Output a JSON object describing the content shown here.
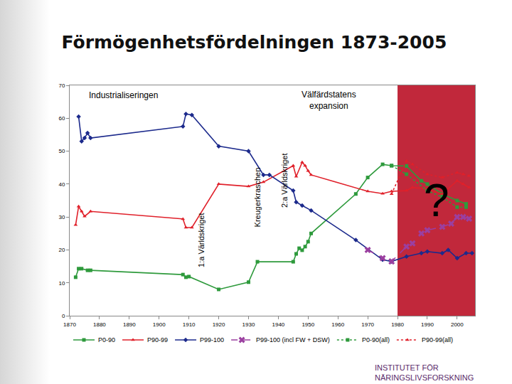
{
  "chart_data": {
    "type": "line",
    "title": "Förmögenhetsfördelningen 1873-2005",
    "xlim": [
      1870,
      2006
    ],
    "xticks": [
      1870,
      1880,
      1890,
      1900,
      1910,
      1920,
      1930,
      1940,
      1950,
      1960,
      1970,
      1980,
      1990,
      2000
    ],
    "ylim": [
      0,
      70
    ],
    "yticks": [
      0,
      10,
      20,
      30,
      40,
      50,
      60,
      70
    ],
    "grid": false,
    "legend": "bottom",
    "annotations": [
      {
        "text": "Industrialiseringen",
        "x": 1888,
        "y": 67
      },
      {
        "text": "Välfärdstatens\nexpansion",
        "x": 1957,
        "y": 65.5
      },
      {
        "text": "?",
        "x": 1993,
        "y": 35
      }
    ],
    "vertical_labels": [
      {
        "text": "1:a Världskriget",
        "x": 1914,
        "y": 23
      },
      {
        "text": "Kreugerkraschen",
        "x": 1933,
        "y": 36
      },
      {
        "text": "2:a Världskriget",
        "x": 1942,
        "y": 41
      }
    ],
    "shaded_range": [
      1980,
      2006
    ],
    "logo": [
      "INSTITUTET FÖR",
      "NÄRINGSLIVSFORSKNING"
    ],
    "series": [
      {
        "name": "P0-90",
        "color": "#2e9a3c",
        "marker": "square",
        "line_style": "solid",
        "x": [
          1872,
          1873,
          1874,
          1876,
          1877,
          1908,
          1909,
          1910,
          1920,
          1930,
          1933,
          1945,
          1946,
          1947,
          1948,
          1949,
          1950,
          1951,
          1966,
          1970,
          1975,
          1978,
          1983,
          1988,
          1990,
          1995,
          2000,
          2003
        ],
        "values": [
          11.7,
          14.3,
          14.3,
          13.8,
          13.8,
          12.5,
          11.7,
          11.9,
          8,
          10.2,
          16.4,
          16.4,
          18.8,
          20.5,
          19.9,
          21,
          22.5,
          25,
          37,
          42,
          46,
          45.6,
          45.5,
          41,
          40,
          37,
          35,
          34
        ]
      },
      {
        "name": "P90-99",
        "color": "#e0202a",
        "marker": "triangle-up",
        "line_style": "solid",
        "x": [
          1872,
          1873,
          1874,
          1875,
          1877,
          1908,
          1909,
          1911,
          1920,
          1930,
          1935,
          1945,
          1946,
          1948,
          1949,
          1950,
          1951,
          1970,
          1975,
          1978,
          1983,
          1985,
          1990,
          1995,
          2000,
          2002,
          2004
        ],
        "values": [
          27.6,
          33.2,
          31.7,
          30.2,
          31.7,
          29.4,
          26.8,
          26.8,
          40,
          39.3,
          40.6,
          45.6,
          42.3,
          46.6,
          45.6,
          44,
          42.8,
          37.8,
          37.1,
          37.8,
          38,
          39,
          38.5,
          37,
          41,
          40,
          39
        ]
      },
      {
        "name": "P99-100",
        "color": "#1c2a8c",
        "marker": "diamond",
        "line_style": "solid",
        "x": [
          1873,
          1874,
          1875,
          1876,
          1877,
          1908,
          1909,
          1911,
          1920,
          1930,
          1935,
          1937,
          1945,
          1946,
          1948,
          1951,
          1966,
          1975,
          1978,
          1983,
          1988,
          1990,
          1995,
          1997,
          2000,
          2003,
          2005
        ],
        "values": [
          60.5,
          53,
          54,
          55.5,
          54,
          57.5,
          61.3,
          61,
          51.5,
          50,
          42.8,
          42.8,
          38,
          34.5,
          33.5,
          32,
          23,
          17,
          16.5,
          18,
          19,
          19.5,
          19,
          20,
          17.5,
          19,
          19
        ]
      },
      {
        "name": "P99-100 (incl FW + DSW)",
        "color": "#9b3fa0",
        "marker": "x",
        "line_style": "dash",
        "x": [
          1970,
          1975,
          1978,
          1983,
          1985,
          1988,
          1990,
          1995,
          1998,
          2000,
          2002,
          2004
        ],
        "values": [
          20,
          17.5,
          16.5,
          21,
          22,
          25,
          26,
          27,
          28,
          30,
          30,
          29.5
        ]
      },
      {
        "name": "P0-90(all)",
        "color": "#2e9a3c",
        "marker": "square",
        "line_style": "dot",
        "x": [
          1978,
          1983,
          1990,
          1995,
          2000,
          2003
        ],
        "values": [
          45.6,
          43,
          38,
          36,
          33,
          33
        ]
      },
      {
        "name": "P90-99(all)",
        "color": "#e0202a",
        "marker": "triangle-up",
        "line_style": "dot",
        "x": [
          1978,
          1983,
          1985,
          1990,
          1995,
          2000,
          2002,
          2004
        ],
        "values": [
          37,
          47,
          46,
          43,
          42,
          43.5,
          43,
          42.5
        ]
      }
    ]
  }
}
